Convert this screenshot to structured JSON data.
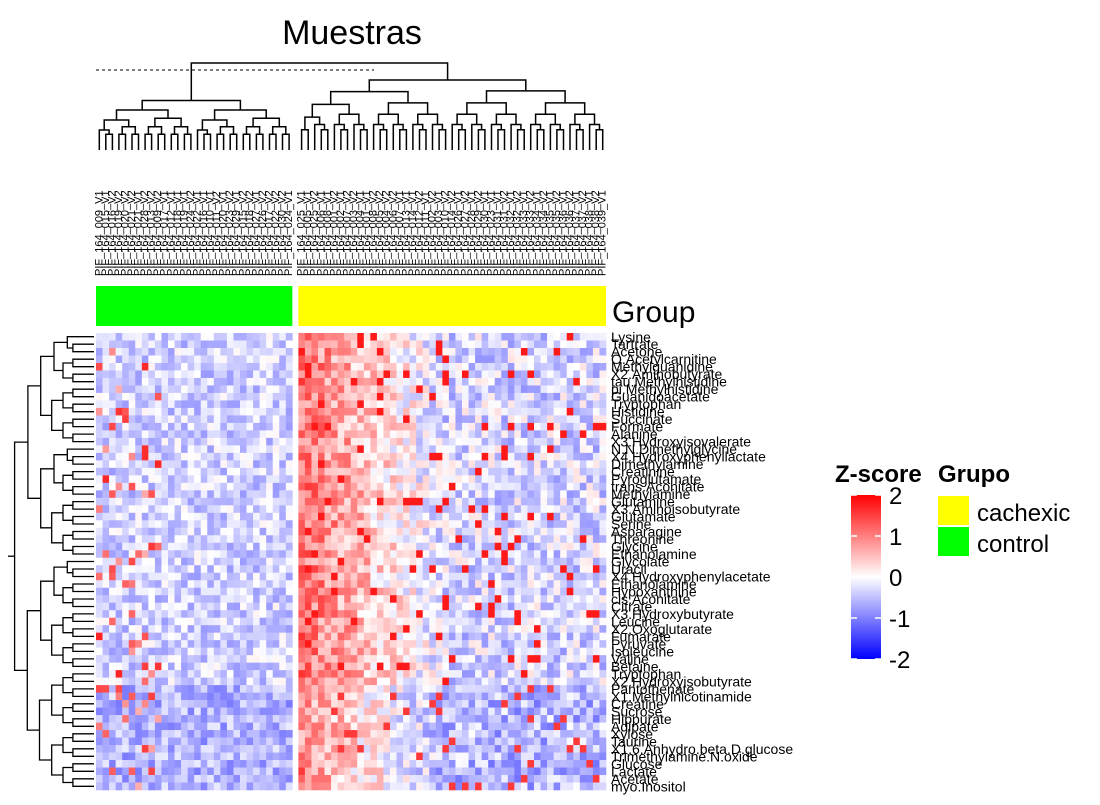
{
  "chart_data": {
    "type": "heatmap",
    "title": "Muestras",
    "annotation_title": "Group",
    "samples": [
      "PIF_164_009_V1",
      "PIF_164_015_V1",
      "PIF_164_016_V2",
      "PIF_164_019_V2",
      "PIF_164_020_V2",
      "PIF_164_021_V2",
      "PIF_164_021_V1",
      "PIF_164_028_V2",
      "PIF_164_013_V2",
      "PIF_164_009_V2",
      "PIF_164_017_V1",
      "PIF_164_012_V1",
      "PIF_164_018_V1",
      "PIF_164_019_V1",
      "PIF_164_024_V2",
      "PIF_164_022_V1",
      "PIF_164_016_V1",
      "PIF_164_010_V1",
      "PIF_164_011_V2",
      "PIF_164_020_V1",
      "PIF_164_023_V2",
      "PIF_164_029_V1",
      "PIF_164_015_V2",
      "PIF_164_018_V2",
      "PIF_164_027_V1",
      "PIF_164_026_V2",
      "PIF_164_017_V2",
      "PIF_164_022_V2",
      "PIF_164_030_V2",
      "PIF_164_024_V1",
      "PIF_164_025_V1",
      "PIF_164_005_V1",
      "PIF_164_025_V2",
      "PIF_164_006_V1",
      "PIF_164_008_V1",
      "PIF_164_001_V2",
      "PIF_164_002_V1",
      "PIF_164_007_V2",
      "PIF_164_003_V2",
      "PIF_164_004_V1",
      "PIF_164_001_V1",
      "PIF_164_008_V2",
      "PIF_164_005_V2",
      "PIF_164_004_V2",
      "PIF_164_006_V2",
      "PIF_164_007_V1",
      "PIF_164_013_V1",
      "PIF_164_014_V1",
      "PIF_164_012_V2",
      "PIF_164_011_V1",
      "PIF_164_002_V2",
      "PIF_164_003_V1",
      "PIF_164_010_V2",
      "PIF_164_014_V2",
      "PIF_164_026_V1",
      "PIF_164_027_V2",
      "PIF_164_028_V1",
      "PIF_164_029_V2",
      "PIF_164_030_V1",
      "PIF_164_023_V1",
      "PIF_164_031_V1",
      "PIF_164_031_V2",
      "PIF_164_032_V1",
      "PIF_164_032_V2",
      "PIF_164_033_V1",
      "PIF_164_033_V2",
      "PIF_164_034_V1",
      "PIF_164_034_V2",
      "PIF_164_035_V1",
      "PIF_164_035_V2",
      "PIF_164_036_V1",
      "PIF_164_036_V2",
      "PIF_164_037_V1",
      "PIF_164_037_V2",
      "PIF_164_038_V1",
      "PIF_164_038_V2",
      "PIF_164_039_V1"
    ],
    "groups": {
      "control_count": 30,
      "cachexic_count": 47
    },
    "rows": [
      "Lysine",
      "Tartrate",
      "Acetone",
      "O.Acetylcarnitine",
      "Methylguanidine",
      "X2.Aminobutyrate",
      "tau.Methylhistidine",
      "pi.Methylhistidine",
      "Guanidoacetate",
      "Tryptophan",
      "Histidine",
      "Succinate",
      "Formate",
      "Alanine",
      "X3.Hydroxyisovalerate",
      "N.N.Dimethylglycine",
      "X4.Hydroxyphenyllactate",
      "Dimethylamine",
      "Creatinine",
      "Pyroglutamate",
      "trans.Aconitate",
      "Methylamine",
      "Glutamine",
      "X3.Aminoisobutyrate",
      "Glutamate",
      "Serine",
      "Asparagine",
      "Threonine",
      "Glycine",
      "Ethanolamine",
      "Glycolate",
      "Uracil",
      "X4.Hydroxyphenylacetate",
      "Ethanolamine",
      "Hypoxanthine",
      "cis.Aconitate",
      "Citrate",
      "X3.Hydroxybutyrate",
      "Leucine",
      "X2.Oxoglutarate",
      "Fumarate",
      "Pyruvate",
      "Isoleucine",
      "Valine",
      "Betaine",
      "Tryptophan",
      "X2.Hydroxyisobutyrate",
      "Pantothenate",
      "X1.Methylnicotinamide",
      "Creatine",
      "Sucrose",
      "Hippurate",
      "Adipate",
      "Xylose",
      "Taurine",
      "X1.6.Anhydro.beta.D.glucose",
      "Trimethylamine.N.oxide",
      "Glucose",
      "Lactate",
      "Acetate",
      "myo.Inositol"
    ],
    "color_scale": {
      "min": -2,
      "max": 2,
      "low": "#0000FF",
      "mid": "#FFFFFF",
      "high": "#FF0000"
    },
    "legend_zscore": {
      "title": "Z-score",
      "ticks": [
        "2",
        "1",
        "0",
        "-1",
        "-2"
      ]
    },
    "legend_group": {
      "title": "Grupo",
      "items": [
        {
          "label": "cachexic",
          "color": "#FFFF00"
        },
        {
          "label": "control",
          "color": "#00FF00"
        }
      ]
    },
    "legend_placement": "right"
  }
}
